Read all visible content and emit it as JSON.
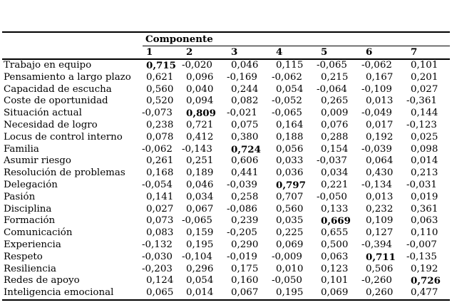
{
  "page": {
    "background_color": "#ffffff",
    "text_color": "#000000"
  },
  "table": {
    "group_header": "Componente",
    "column_headers": [
      "1",
      "2",
      "3",
      "4",
      "5",
      "6",
      "7"
    ],
    "rows": [
      {
        "label": "Trabajo en equipo",
        "values": [
          "0,715",
          "-0,020",
          "0,046",
          "0,115",
          "-0,065",
          "-0,062",
          "0,101"
        ],
        "bold_index": 0
      },
      {
        "label": "Pensamiento a largo plazo",
        "values": [
          "0,621",
          "0,096",
          "-0,169",
          "-0,062",
          "0,215",
          "0,167",
          "0,201"
        ],
        "bold_index": -1
      },
      {
        "label": "Capacidad de escucha",
        "values": [
          "0,560",
          "0,040",
          "0,244",
          "0,054",
          "-0,064",
          "-0,109",
          "0,027"
        ],
        "bold_index": -1
      },
      {
        "label": "Coste de oportunidad",
        "values": [
          "0,520",
          "0,094",
          "0,082",
          "-0,052",
          "0,265",
          "0,013",
          "-0,361"
        ],
        "bold_index": -1
      },
      {
        "label": "Situación actual",
        "values": [
          "-0,073",
          "0,809",
          "-0,021",
          "-0,065",
          "0,009",
          "-0,049",
          "0,144"
        ],
        "bold_index": 1
      },
      {
        "label": "Necesidad de logro",
        "values": [
          "0,238",
          "0,721",
          "0,075",
          "0,164",
          "0,076",
          "0,017",
          "-0,123"
        ],
        "bold_index": -1
      },
      {
        "label": "Locus de control interno",
        "values": [
          "0,078",
          "0,412",
          "0,380",
          "0,188",
          "0,288",
          "0,192",
          "0,025"
        ],
        "bold_index": -1
      },
      {
        "label": "Familia",
        "values": [
          "-0,062",
          "-0,143",
          "0,724",
          "0,056",
          "0,154",
          "-0,039",
          "0,098"
        ],
        "bold_index": 2
      },
      {
        "label": "Asumir riesgo",
        "values": [
          "0,261",
          "0,251",
          "0,606",
          "0,033",
          "-0,037",
          "0,064",
          "0,014"
        ],
        "bold_index": -1
      },
      {
        "label": "Resolución de problemas",
        "values": [
          "0,168",
          "0,189",
          "0,441",
          "0,036",
          "0,034",
          "0,430",
          "0,213"
        ],
        "bold_index": -1
      },
      {
        "label": "Delegación",
        "values": [
          "-0,054",
          "0,046",
          "-0,039",
          "0,797",
          "0,221",
          "-0,134",
          "-0,031"
        ],
        "bold_index": 3
      },
      {
        "label": "Pasión",
        "values": [
          "0,141",
          "0,034",
          "0,258",
          "0,707",
          "-0,050",
          "0,013",
          "0,019"
        ],
        "bold_index": -1
      },
      {
        "label": "Disciplina",
        "values": [
          "0,027",
          "0,067",
          "-0,086",
          "0,560",
          "0,133",
          "0,232",
          "0,361"
        ],
        "bold_index": -1
      },
      {
        "label": "Formación",
        "values": [
          "0,073",
          "-0,065",
          "0,239",
          "0,035",
          "0,669",
          "0,109",
          "0,063"
        ],
        "bold_index": 4
      },
      {
        "label": "Comunicación",
        "values": [
          "0,083",
          "0,159",
          "-0,205",
          "0,225",
          "0,655",
          "0,127",
          "0,110"
        ],
        "bold_index": -1
      },
      {
        "label": "Experiencia",
        "values": [
          "-0,132",
          "0,195",
          "0,290",
          "0,069",
          "0,500",
          "-0,394",
          "-0,007"
        ],
        "bold_index": -1
      },
      {
        "label": "Respeto",
        "values": [
          "-0,030",
          "-0,104",
          "-0,019",
          "-0,009",
          "0,063",
          "0,711",
          "-0,135"
        ],
        "bold_index": 5
      },
      {
        "label": "Resiliencia",
        "values": [
          "-0,203",
          "0,296",
          "0,175",
          "0,010",
          "0,123",
          "0,506",
          "0,192"
        ],
        "bold_index": -1
      },
      {
        "label": "Redes de apoyo",
        "values": [
          "0,124",
          "0,054",
          "0,160",
          "-0,050",
          "0,101",
          "-0,260",
          "0,726"
        ],
        "bold_index": 6
      },
      {
        "label": "Inteligencia emocional",
        "values": [
          "0,065",
          "0,014",
          "0,067",
          "0,195",
          "0,069",
          "0,260",
          "0,477"
        ],
        "bold_index": -1
      }
    ]
  }
}
